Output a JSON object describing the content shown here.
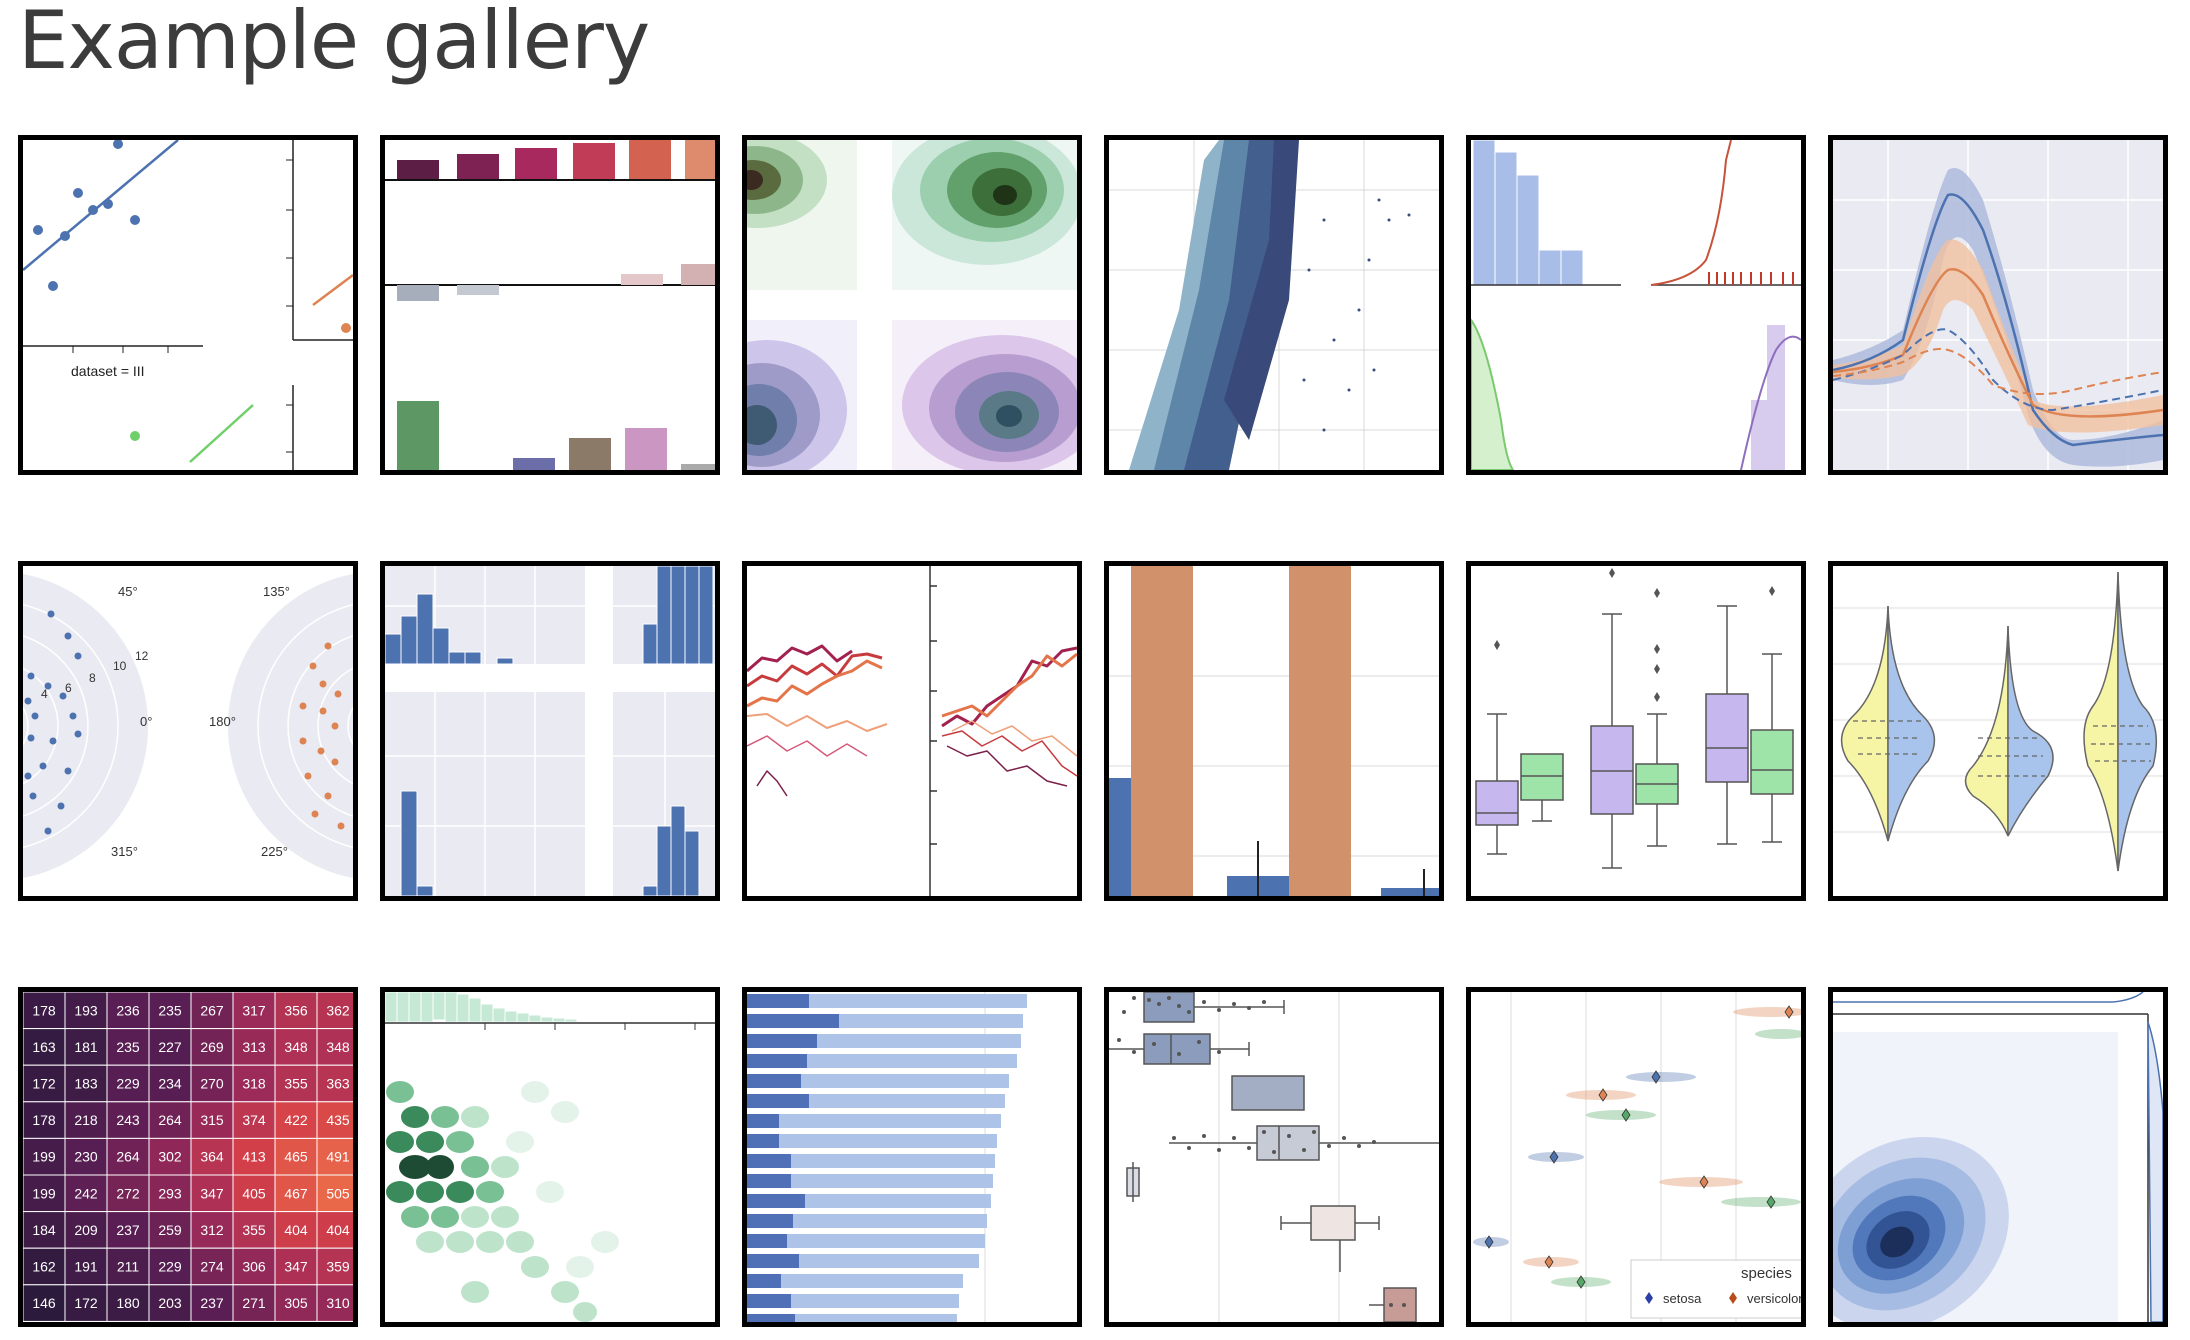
{
  "page": {
    "title": "Example gallery"
  },
  "tiles": [
    {
      "id": "anscombes-quartet",
      "labels": {
        "panel": "dataset = III"
      }
    },
    {
      "id": "color-palettes"
    },
    {
      "id": "kde-grid"
    },
    {
      "id": "large-scatter"
    },
    {
      "id": "distributions"
    },
    {
      "id": "timeseries-bands"
    },
    {
      "id": "polar-facets",
      "labels": {
        "a45": "45°",
        "a135": "135°",
        "a0": "0°",
        "a180": "180°",
        "a315": "315°",
        "a225": "225°",
        "r4": "4",
        "r6": "6",
        "r8": "8",
        "r10": "10",
        "r12": "12"
      }
    },
    {
      "id": "histogram-facets"
    },
    {
      "id": "line-facets"
    },
    {
      "id": "grouped-bars"
    },
    {
      "id": "grouped-boxplots"
    },
    {
      "id": "split-violins"
    },
    {
      "id": "heatmap",
      "cells": [
        [
          "178",
          "193",
          "236",
          "235",
          "267",
          "317",
          "356",
          "362"
        ],
        [
          "163",
          "181",
          "235",
          "227",
          "269",
          "313",
          "348",
          "348"
        ],
        [
          "172",
          "183",
          "229",
          "234",
          "270",
          "318",
          "355",
          "363"
        ],
        [
          "178",
          "218",
          "243",
          "264",
          "315",
          "374",
          "422",
          "435"
        ],
        [
          "199",
          "230",
          "264",
          "302",
          "364",
          "413",
          "465",
          "491"
        ],
        [
          "199",
          "242",
          "272",
          "293",
          "347",
          "405",
          "467",
          "505"
        ],
        [
          "184",
          "209",
          "237",
          "259",
          "312",
          "355",
          "404",
          "404"
        ],
        [
          "162",
          "191",
          "211",
          "229",
          "274",
          "306",
          "347",
          "359"
        ],
        [
          "146",
          "172",
          "180",
          "203",
          "237",
          "271",
          "305",
          "310"
        ]
      ]
    },
    {
      "id": "hexbin-joint"
    },
    {
      "id": "horizontal-bars"
    },
    {
      "id": "boxplot-swarm"
    },
    {
      "id": "strip-points",
      "labels": {
        "legend_title": "species",
        "legend_a": "setosa",
        "legend_b": "versicolor"
      }
    },
    {
      "id": "bivariate-kde"
    }
  ],
  "colors": {
    "deep_blue": "#4c72b0",
    "orange": "#dd8452",
    "green": "#55a868",
    "grid_bg": "#eaeaf2",
    "lavender": "#c6b7ef",
    "mint": "#9ee3a8",
    "heat_dark": "#2b1a3c",
    "heat_mid": "#a22c59",
    "heat_hot": "#e9684a"
  }
}
